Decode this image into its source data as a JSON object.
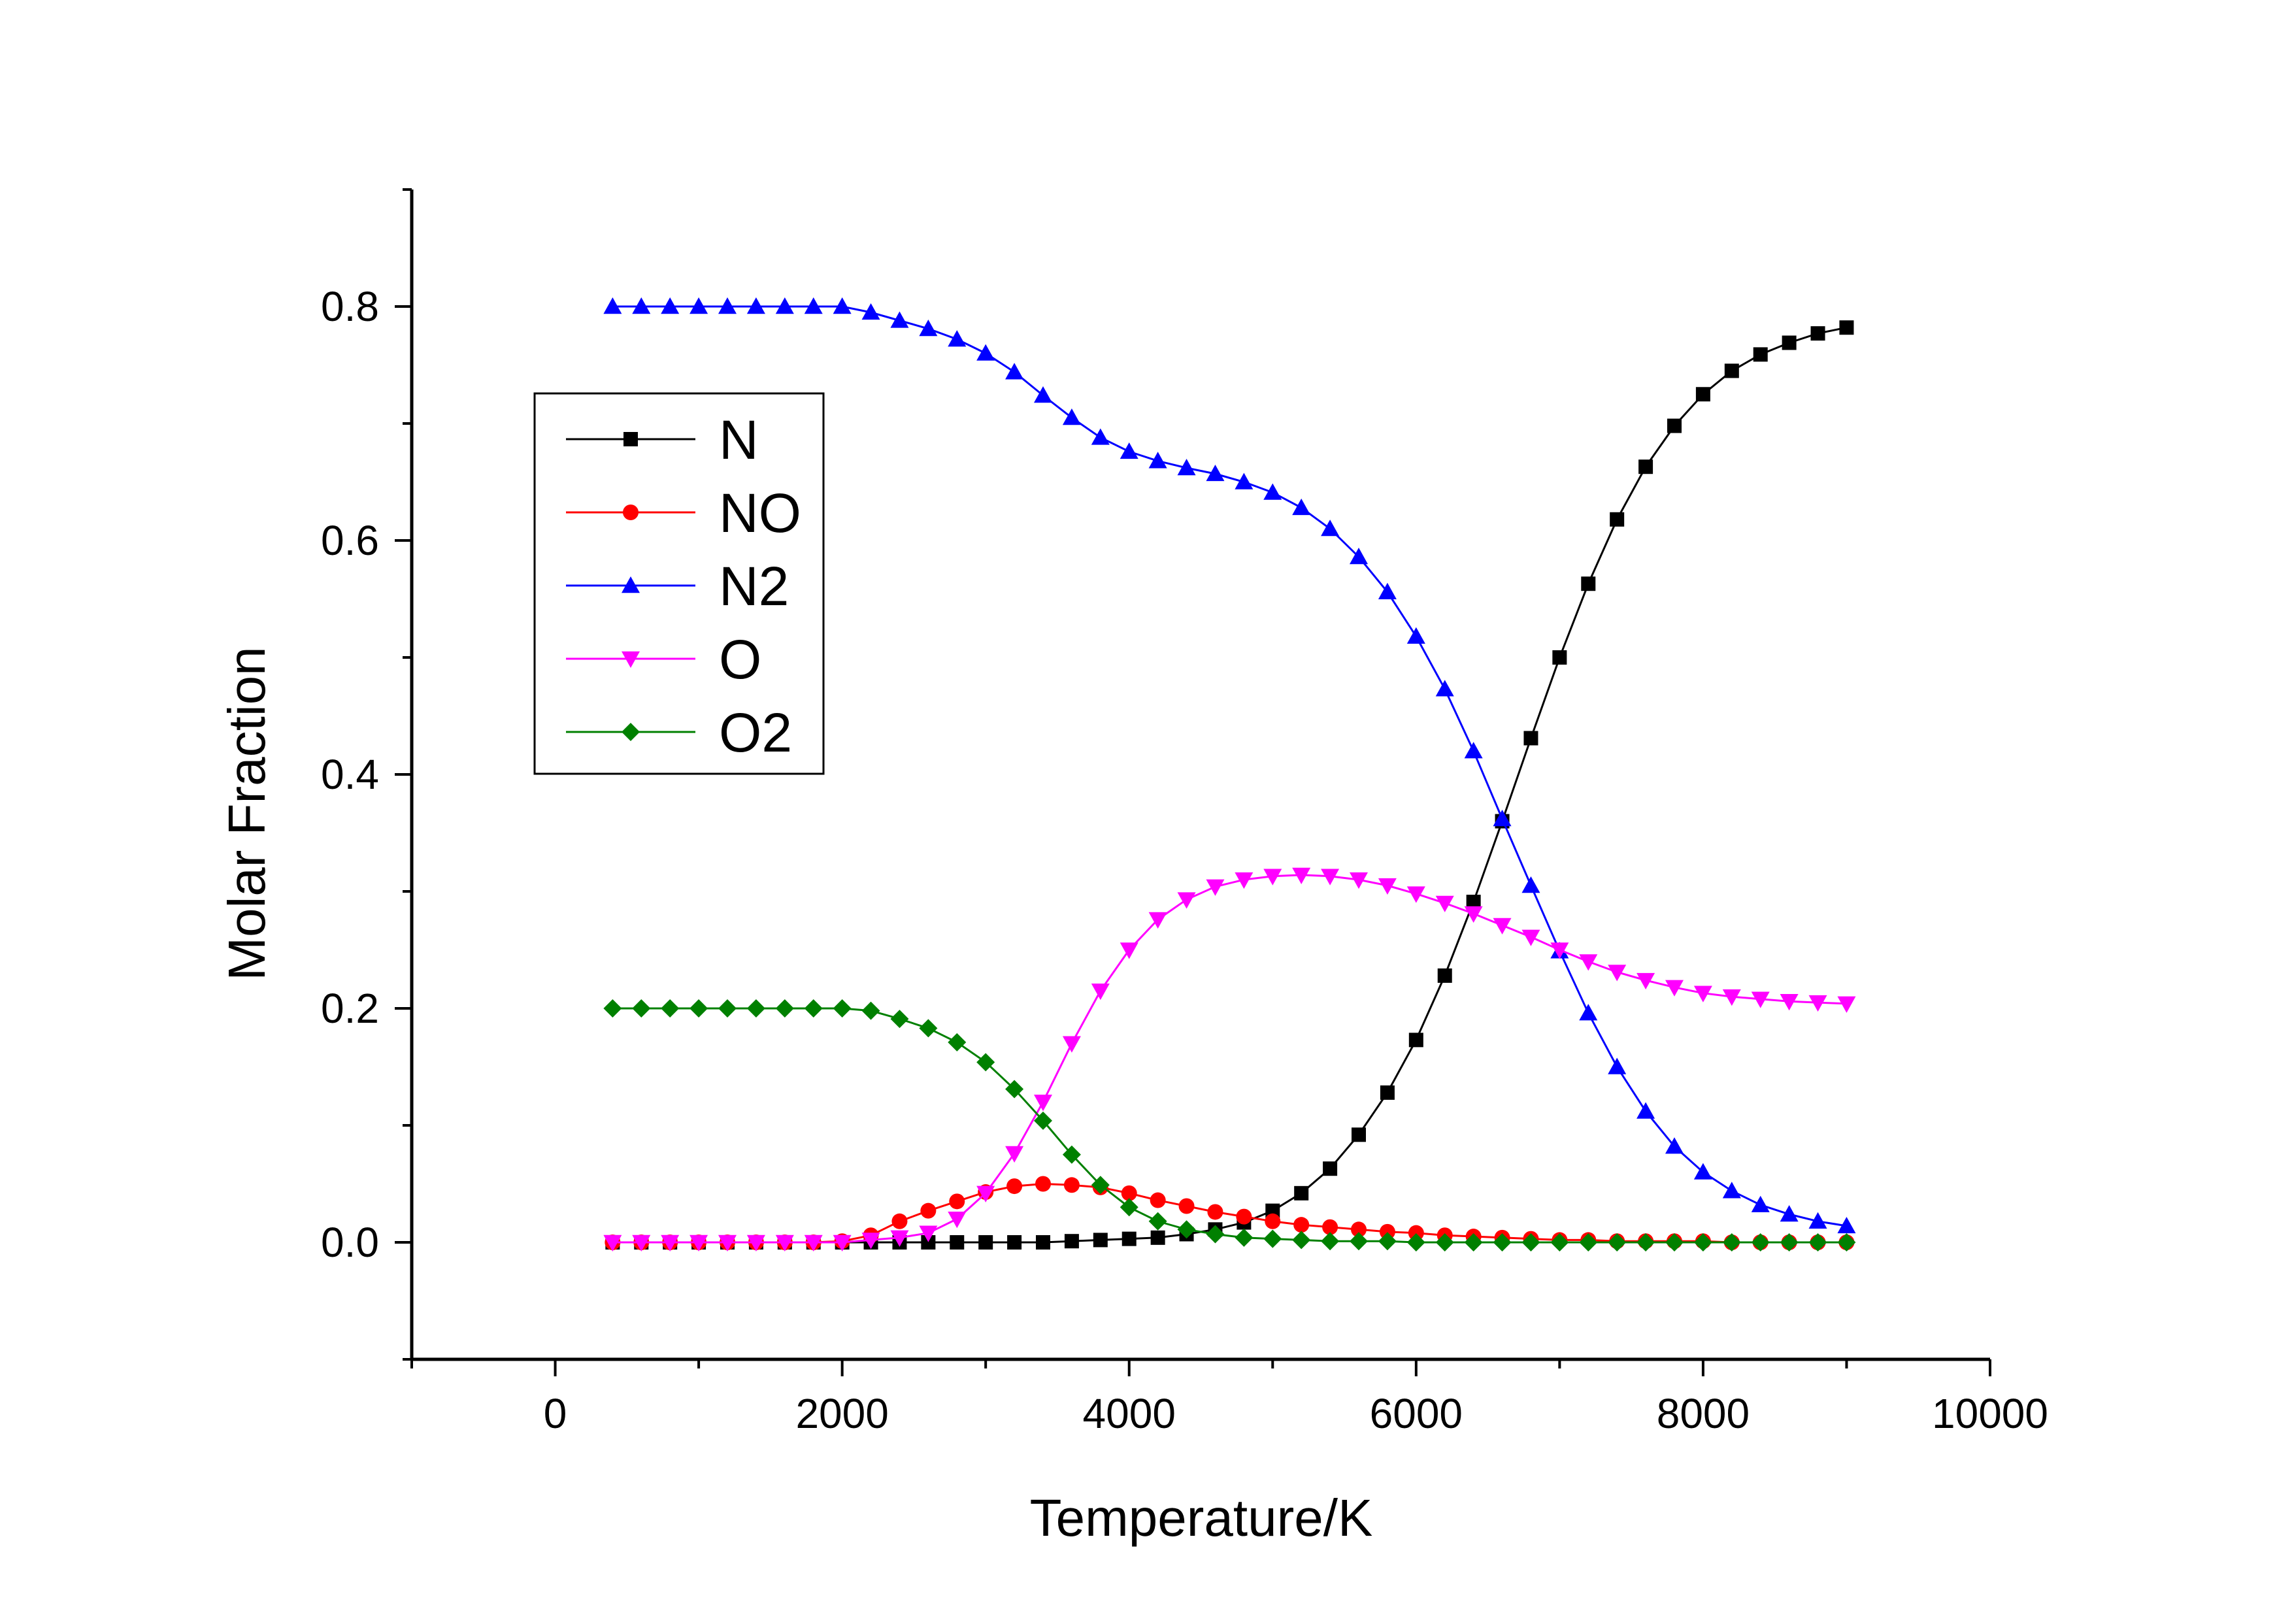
{
  "chart_data": {
    "type": "line",
    "title": "",
    "xlabel": "Temperature/K",
    "ylabel": "Molar Fraction",
    "xlim": [
      -1000,
      10000
    ],
    "ylim": [
      -0.1,
      0.9
    ],
    "xticks": [
      0,
      2000,
      4000,
      6000,
      8000,
      10000
    ],
    "yticks": [
      0.0,
      0.2,
      0.4,
      0.6,
      0.8
    ],
    "xtick_labels": [
      "0",
      "2000",
      "4000",
      "6000",
      "8000",
      "10000"
    ],
    "ytick_labels": [
      "0.0",
      "0.2",
      "0.4",
      "0.6",
      "0.8"
    ],
    "grid": false,
    "legend_position": "upper-left",
    "x": [
      400,
      600,
      800,
      1000,
      1200,
      1400,
      1600,
      1800,
      2000,
      2200,
      2400,
      2600,
      2800,
      3000,
      3200,
      3400,
      3600,
      3800,
      4000,
      4200,
      4400,
      4600,
      4800,
      5000,
      5200,
      5400,
      5600,
      5800,
      6000,
      6200,
      6400,
      6600,
      6800,
      7000,
      7200,
      7400,
      7600,
      7800,
      8000,
      8200,
      8400,
      8600,
      8800,
      9000
    ],
    "series": [
      {
        "name": "N",
        "color": "#000000",
        "marker": "square",
        "values": [
          0,
          0,
          0,
          0,
          0,
          0,
          0,
          0,
          0,
          0,
          0,
          0,
          0,
          0,
          0,
          0,
          0.001,
          0.002,
          0.003,
          0.004,
          0.007,
          0.011,
          0.017,
          0.027,
          0.042,
          0.063,
          0.092,
          0.128,
          0.173,
          0.228,
          0.291,
          0.36,
          0.431,
          0.5,
          0.563,
          0.618,
          0.663,
          0.698,
          0.725,
          0.745,
          0.759,
          0.769,
          0.777,
          0.782
        ]
      },
      {
        "name": "NO",
        "color": "#ff0000",
        "marker": "circle",
        "values": [
          0,
          0,
          0,
          0,
          0,
          0,
          0,
          0,
          0.001,
          0.006,
          0.018,
          0.027,
          0.035,
          0.043,
          0.048,
          0.05,
          0.049,
          0.047,
          0.042,
          0.036,
          0.031,
          0.026,
          0.022,
          0.018,
          0.015,
          0.013,
          0.011,
          0.009,
          0.008,
          0.006,
          0.005,
          0.004,
          0.003,
          0.002,
          0.002,
          0.001,
          0.001,
          0.001,
          0.001,
          0,
          0,
          0,
          0,
          0
        ]
      },
      {
        "name": "N2",
        "color": "#0000ff",
        "marker": "triangle-up",
        "values": [
          0.8,
          0.8,
          0.8,
          0.8,
          0.8,
          0.8,
          0.8,
          0.8,
          0.8,
          0.795,
          0.788,
          0.781,
          0.772,
          0.76,
          0.744,
          0.724,
          0.705,
          0.688,
          0.676,
          0.668,
          0.662,
          0.657,
          0.65,
          0.641,
          0.628,
          0.61,
          0.586,
          0.556,
          0.518,
          0.473,
          0.42,
          0.362,
          0.305,
          0.249,
          0.196,
          0.15,
          0.112,
          0.082,
          0.06,
          0.044,
          0.032,
          0.024,
          0.018,
          0.014
        ]
      },
      {
        "name": "O",
        "color": "#ff00ff",
        "marker": "triangle-down",
        "values": [
          0,
          0,
          0,
          0,
          0,
          0,
          0,
          0,
          0,
          0.002,
          0.004,
          0.008,
          0.02,
          0.042,
          0.076,
          0.12,
          0.17,
          0.215,
          0.25,
          0.276,
          0.293,
          0.304,
          0.31,
          0.313,
          0.314,
          0.313,
          0.31,
          0.305,
          0.298,
          0.29,
          0.281,
          0.271,
          0.261,
          0.25,
          0.24,
          0.231,
          0.224,
          0.218,
          0.213,
          0.21,
          0.208,
          0.206,
          0.205,
          0.204
        ]
      },
      {
        "name": "O2",
        "color": "#008000",
        "marker": "diamond",
        "values": [
          0.2,
          0.2,
          0.2,
          0.2,
          0.2,
          0.2,
          0.2,
          0.2,
          0.2,
          0.198,
          0.191,
          0.183,
          0.171,
          0.154,
          0.131,
          0.104,
          0.075,
          0.049,
          0.03,
          0.018,
          0.011,
          0.007,
          0.004,
          0.003,
          0.002,
          0.001,
          0.001,
          0.001,
          0,
          0,
          0,
          0,
          0,
          0,
          0,
          0,
          0,
          0,
          0,
          0,
          0,
          0,
          0,
          0
        ]
      }
    ]
  }
}
